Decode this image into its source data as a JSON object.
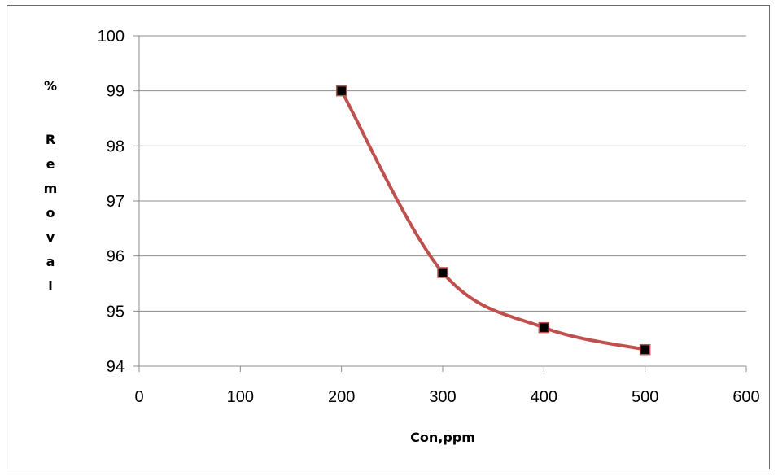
{
  "chart_data": {
    "type": "line",
    "title": "",
    "xlabel": "Con,ppm",
    "ylabel": "% Removal",
    "xlim": [
      0,
      600
    ],
    "ylim": [
      94,
      100
    ],
    "x_ticks": [
      0,
      100,
      200,
      300,
      400,
      500,
      600
    ],
    "y_ticks": [
      94,
      95,
      96,
      97,
      98,
      99,
      100
    ],
    "grid": "horizontal",
    "smooth": true,
    "legend": "none",
    "series": [
      {
        "x": [
          200,
          300,
          400,
          500
        ],
        "values": [
          99.0,
          95.7,
          94.7,
          94.3
        ],
        "line_color": "#c0504d",
        "marker": "square",
        "marker_fill": "#000000",
        "marker_edge": "#c0504d"
      }
    ]
  }
}
